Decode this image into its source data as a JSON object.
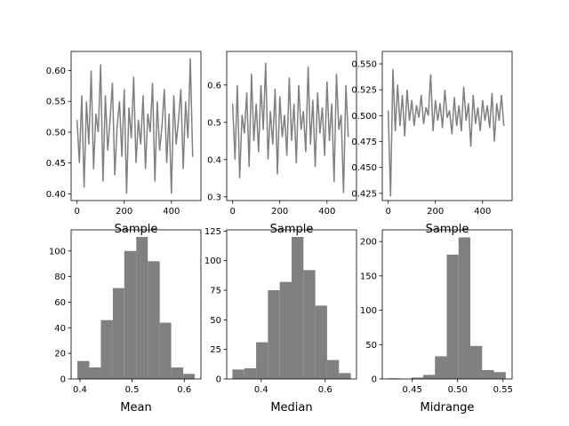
{
  "chart_data": [
    {
      "type": "line",
      "xlabel": "Sample",
      "color": "#808080",
      "x": [
        0,
        10,
        20,
        30,
        40,
        50,
        60,
        70,
        80,
        90,
        100,
        110,
        120,
        130,
        140,
        150,
        160,
        170,
        180,
        190,
        200,
        210,
        220,
        230,
        240,
        250,
        260,
        270,
        280,
        290,
        300,
        310,
        320,
        330,
        340,
        350,
        360,
        370,
        380,
        390,
        400,
        410,
        420,
        430,
        440,
        450,
        460,
        470,
        480,
        490
      ],
      "values": [
        0.52,
        0.45,
        0.56,
        0.41,
        0.55,
        0.48,
        0.6,
        0.44,
        0.53,
        0.5,
        0.61,
        0.42,
        0.56,
        0.47,
        0.52,
        0.58,
        0.43,
        0.51,
        0.55,
        0.46,
        0.57,
        0.4,
        0.54,
        0.49,
        0.59,
        0.45,
        0.52,
        0.48,
        0.56,
        0.44,
        0.53,
        0.5,
        0.58,
        0.42,
        0.55,
        0.47,
        0.51,
        0.57,
        0.45,
        0.53,
        0.4,
        0.56,
        0.48,
        0.52,
        0.57,
        0.44,
        0.55,
        0.49,
        0.62,
        0.46
      ],
      "xlim": [
        -25,
        525
      ],
      "xticks": [
        0,
        200,
        400
      ],
      "ylim": [
        0.389,
        0.631
      ],
      "yticks": [
        {
          "value": 0.4,
          "label": "0.40"
        },
        {
          "value": 0.45,
          "label": "0.45"
        },
        {
          "value": 0.5,
          "label": "0.50"
        },
        {
          "value": 0.55,
          "label": "0.55"
        },
        {
          "value": 0.6,
          "label": "0.60"
        }
      ]
    },
    {
      "type": "line",
      "xlabel": "Sample",
      "color": "#808080",
      "x": [
        0,
        10,
        20,
        30,
        40,
        50,
        60,
        70,
        80,
        90,
        100,
        110,
        120,
        130,
        140,
        150,
        160,
        170,
        180,
        190,
        200,
        210,
        220,
        230,
        240,
        250,
        260,
        270,
        280,
        290,
        300,
        310,
        320,
        330,
        340,
        350,
        360,
        370,
        380,
        390,
        400,
        410,
        420,
        430,
        440,
        450,
        460,
        470,
        480,
        490
      ],
      "values": [
        0.55,
        0.4,
        0.6,
        0.35,
        0.52,
        0.47,
        0.58,
        0.38,
        0.63,
        0.45,
        0.55,
        0.42,
        0.6,
        0.48,
        0.66,
        0.4,
        0.53,
        0.44,
        0.59,
        0.36,
        0.57,
        0.46,
        0.52,
        0.41,
        0.62,
        0.45,
        0.55,
        0.39,
        0.6,
        0.48,
        0.53,
        0.42,
        0.65,
        0.44,
        0.56,
        0.38,
        0.58,
        0.47,
        0.54,
        0.41,
        0.61,
        0.45,
        0.55,
        0.34,
        0.63,
        0.48,
        0.52,
        0.31,
        0.6,
        0.46
      ],
      "xlim": [
        -25,
        525
      ],
      "xticks": [
        0,
        200,
        400
      ],
      "ylim": [
        0.29,
        0.69
      ],
      "yticks": [
        0.3,
        0.4,
        0.5,
        0.6
      ]
    },
    {
      "type": "line",
      "xlabel": "Sample",
      "color": "#808080",
      "x": [
        0,
        10,
        20,
        30,
        40,
        50,
        60,
        70,
        80,
        90,
        100,
        110,
        120,
        130,
        140,
        150,
        160,
        170,
        180,
        190,
        200,
        210,
        220,
        230,
        240,
        250,
        260,
        270,
        280,
        290,
        300,
        310,
        320,
        330,
        340,
        350,
        360,
        370,
        380,
        390,
        400,
        410,
        420,
        430,
        440,
        450,
        460,
        470,
        480,
        490
      ],
      "values": [
        0.505,
        0.422,
        0.545,
        0.485,
        0.53,
        0.49,
        0.52,
        0.48,
        0.525,
        0.495,
        0.515,
        0.49,
        0.51,
        0.498,
        0.52,
        0.492,
        0.508,
        0.5,
        0.54,
        0.485,
        0.515,
        0.495,
        0.512,
        0.488,
        0.525,
        0.498,
        0.505,
        0.482,
        0.518,
        0.49,
        0.51,
        0.485,
        0.528,
        0.495,
        0.512,
        0.47,
        0.52,
        0.492,
        0.508,
        0.485,
        0.515,
        0.495,
        0.51,
        0.488,
        0.522,
        0.475,
        0.512,
        0.495,
        0.52,
        0.49
      ],
      "xlim": [
        -25,
        525
      ],
      "xticks": [
        0,
        200,
        400
      ],
      "ylim": [
        0.418,
        0.562
      ],
      "yticks": [
        {
          "value": 0.425,
          "label": "0.425"
        },
        {
          "value": 0.45,
          "label": "0.450"
        },
        {
          "value": 0.475,
          "label": "0.475"
        },
        {
          "value": 0.5,
          "label": "0.500"
        },
        {
          "value": 0.525,
          "label": "0.525"
        },
        {
          "value": 0.55,
          "label": "0.550"
        }
      ]
    },
    {
      "type": "histogram",
      "xlabel": "Mean",
      "color": "#808080",
      "bins": [
        0.395,
        0.418,
        0.44,
        0.463,
        0.485,
        0.508,
        0.53,
        0.553,
        0.575,
        0.598,
        0.62
      ],
      "counts": [
        14,
        9,
        46,
        71,
        100,
        111,
        92,
        44,
        9,
        4
      ],
      "xlim": [
        0.383,
        0.632
      ],
      "xticks": [
        0.4,
        0.5,
        0.6
      ],
      "ylim": [
        0,
        116.5
      ],
      "yticks": [
        0,
        20,
        40,
        60,
        80,
        100
      ]
    },
    {
      "type": "histogram",
      "xlabel": "Median",
      "color": "#808080",
      "bins": [
        0.31,
        0.347,
        0.384,
        0.421,
        0.458,
        0.495,
        0.532,
        0.569,
        0.606,
        0.643,
        0.68
      ],
      "counts": [
        8,
        9,
        31,
        75,
        82,
        120,
        92,
        62,
        16,
        5
      ],
      "xlim": [
        0.292,
        0.698
      ],
      "xticks": [
        0.4,
        0.6
      ],
      "ylim": [
        0,
        126
      ],
      "yticks": [
        0,
        25,
        50,
        75,
        100,
        125
      ]
    },
    {
      "type": "histogram",
      "xlabel": "Midrange",
      "color": "#808080",
      "bins": [
        0.423,
        0.436,
        0.449,
        0.462,
        0.475,
        0.488,
        0.501,
        0.514,
        0.527,
        0.54,
        0.553
      ],
      "counts": [
        1,
        0,
        2,
        6,
        33,
        181,
        206,
        48,
        13,
        10
      ],
      "xlim": [
        0.417,
        0.56
      ],
      "xticks": [
        {
          "value": 0.45,
          "label": "0.45"
        },
        {
          "value": 0.5,
          "label": "0.50"
        },
        {
          "value": 0.55,
          "label": "0.55"
        }
      ],
      "ylim": [
        0,
        217
      ],
      "yticks": [
        0,
        50,
        100,
        150,
        200
      ]
    }
  ]
}
